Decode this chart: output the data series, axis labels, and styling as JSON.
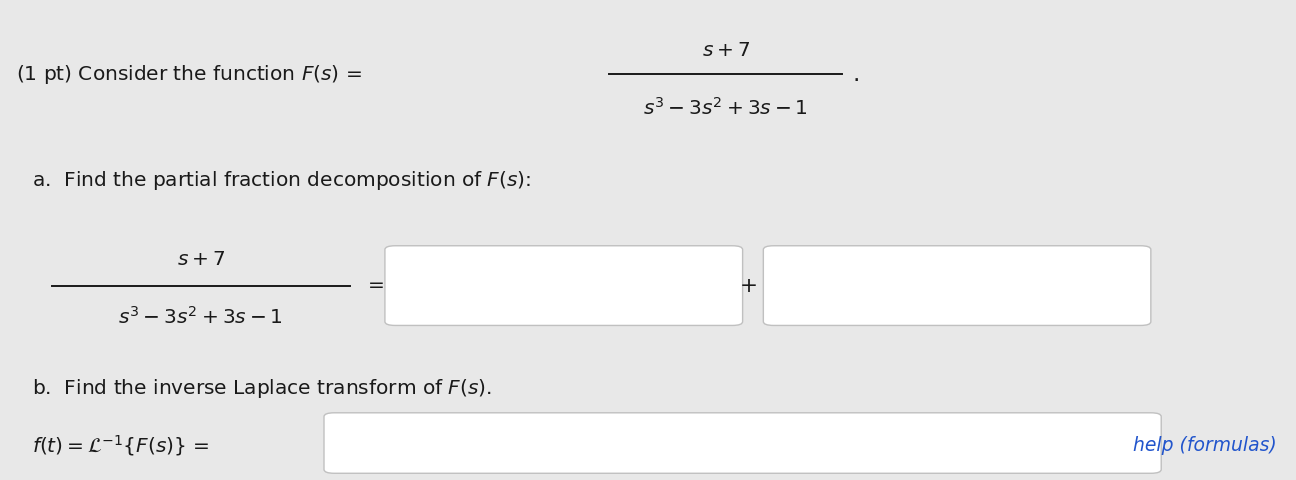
{
  "background_color": "#e8e8e8",
  "text_color": "#1a1a1a",
  "blue_color": "#2255cc",
  "fig_width": 12.96,
  "fig_height": 4.8,
  "dpi": 100,
  "help_text": "help (formulas)",
  "box_fill": "#ffffff",
  "box_edge": "#c0c0c0"
}
